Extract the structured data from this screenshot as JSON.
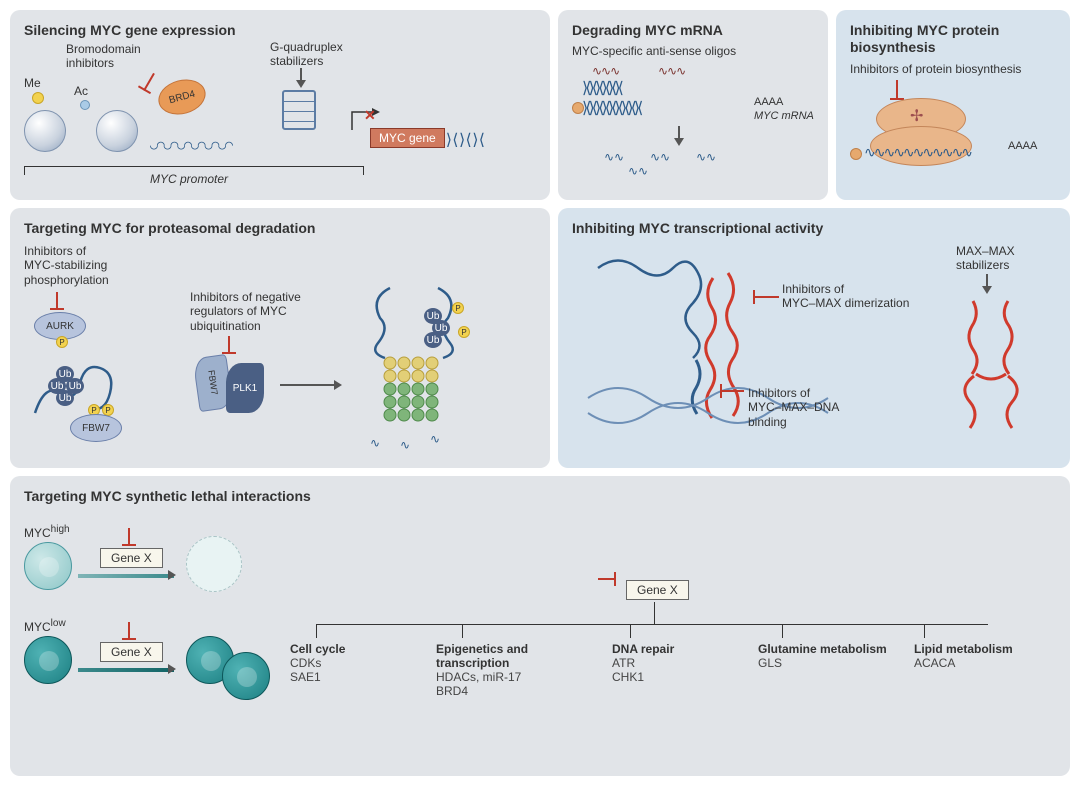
{
  "colors": {
    "bg_light_grey": "#e1e4e8",
    "bg_light_blue": "#d7e3ed",
    "title": "#333333",
    "body": "#444444",
    "inhibitor_red": "#c0392b",
    "arrow_grey": "#555555",
    "orange": "#e9b68a",
    "orange_border": "#c4865a",
    "blue_med": "#b7c4dd",
    "blue_border": "#6a7fa9",
    "dark_blue": "#4a5f84",
    "dna_blue": "#2e5c8a",
    "red_helix": "#d03a2c",
    "cell_light": "#8cc6c7",
    "cell_dark": "#1c7f82",
    "white": "#ffffff",
    "gene_box_bg": "#f8f6ec",
    "myc_gene_bg": "#d07a5f"
  },
  "typography": {
    "title_fontsize": 14,
    "label_fontsize": 12,
    "font_family": "Arial"
  },
  "panels": {
    "silencing": {
      "title": "Silencing MYC gene expression",
      "label_bromo": "Bromodomain\ninhibitors",
      "label_gquad": "G-quadruplex\nstabilizers",
      "label_me": "Me",
      "label_ac": "Ac",
      "label_brd4": "BRD4",
      "label_gene": "MYC gene",
      "label_promoter": "MYC promoter",
      "bg": "#e1e4e8"
    },
    "degrading": {
      "title": "Degrading MYC mRNA",
      "subtitle": "MYC-specific anti-sense oligos",
      "label_aaaa": "AAAA",
      "label_mrna": "MYC mRNA",
      "bg": "#e1e4e8"
    },
    "protein_bio": {
      "title": "Inhibiting MYC protein biosynthesis",
      "subtitle": "Inhibitors of protein biosynthesis",
      "label_aaaa": "AAAA",
      "bg": "#d7e3ed"
    },
    "proteasomal": {
      "title": "Targeting MYC for proteasomal degradation",
      "label_stab": "Inhibitors of\nMYC-stabilizing\nphosphorylation",
      "label_neg": "Inhibitors of negative\nregulators of MYC\nubiquitination",
      "label_aurk": "AURK",
      "label_fbw7": "FBW7",
      "label_fbw7_2": "FBW7",
      "label_plk1": "PLK1",
      "label_ub": "Ub",
      "label_p": "P",
      "bg": "#e1e4e8"
    },
    "transcript": {
      "title": "Inhibiting MYC transcriptional activity",
      "label_dimer": "Inhibitors of\nMYC–MAX dimerization",
      "label_dna": "Inhibitors of\nMYC–MAX–DNA\nbinding",
      "label_maxmax": "MAX–MAX\nstabilizers",
      "bg": "#d7e3ed"
    },
    "synthetic": {
      "title": "Targeting MYC synthetic lethal interactions",
      "label_high": "MYC<sup>high</sup>",
      "label_low": "MYC<sup>low</sup>",
      "label_genex": "Gene X",
      "bg": "#e1e4e8",
      "categories": [
        {
          "title": "Cell cycle",
          "body": "CDKs\nSAE1"
        },
        {
          "title": "Epigenetics and transcription",
          "body": "HDACs, miR-17\nBRD4"
        },
        {
          "title": "DNA repair",
          "body": "ATR\nCHK1"
        },
        {
          "title": "Glutamine metabolism",
          "body": "GLS"
        },
        {
          "title": "Lipid metabolism",
          "body": "ACACA"
        }
      ]
    }
  }
}
